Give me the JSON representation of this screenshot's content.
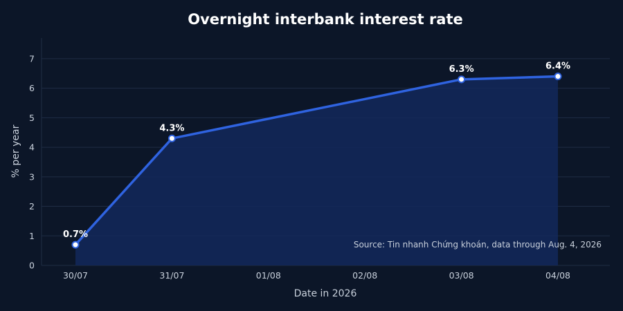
{
  "colors": {
    "background": "#0c1628",
    "line": "#2f63e0",
    "area": "#13285a",
    "grid": "#1f2d45",
    "point_fill": "#ffffff",
    "point_stroke": "#2f63e0",
    "text": "#ffffff",
    "muted_text": "#c9d1dc"
  },
  "chart_data": {
    "type": "area",
    "title": "Overnight interbank interest rate",
    "xlabel": "Date in 2026",
    "ylabel": "% per year",
    "x": [
      "30/07",
      "31/07",
      "01/08",
      "02/08",
      "03/08",
      "04/08"
    ],
    "series": [
      {
        "values": [
          0.7,
          4.3,
          null,
          null,
          6.3,
          6.4
        ],
        "data_labels": [
          "0.7%",
          "4.3%",
          "",
          "",
          "6.3%",
          "6.4%"
        ]
      }
    ],
    "ylim": [
      0,
      7.7
    ],
    "yticks": [
      0,
      1,
      2,
      3,
      4,
      5,
      6,
      7
    ],
    "grid": true,
    "legend": "none",
    "annotation": "Source: Tin nhanh Chứng khoán, data through Aug. 4, 2026"
  }
}
